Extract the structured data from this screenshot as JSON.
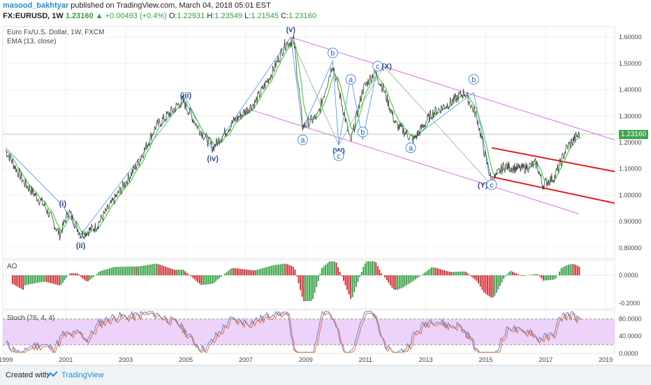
{
  "header": {
    "author": "masood_bakhtyar",
    "published_text": "published on TradingView.com, March 04, 2018 05:01 EST",
    "symbol": "FX:EURUSD, 1W",
    "last": "1.23160",
    "change": "▲ +0.00493 (+0.4%)",
    "o_label": "O:",
    "o": "1.22931",
    "h_label": "H:",
    "h": "1.23549",
    "l_label": "L:",
    "l": "1.21545",
    "c_label": "C:",
    "c": "1.23160"
  },
  "legend": {
    "instrument": "Euro Fx/U.S. Dollar, 1W, FXCM",
    "ema": "EMA (13, close)",
    "ao": "AO",
    "stoch": "Stoch (76, 4, 4)"
  },
  "footer": {
    "created_with": "Created with",
    "brand": "TradingView"
  },
  "colors": {
    "price": "#3e3e3e",
    "ema": "#4ccd4c",
    "wave": "#4a90e2",
    "wave2": "#8cb08c",
    "channel_pink": "#e070e0",
    "channel_red": "#e02020",
    "last_price": "#3fa34d",
    "ao_up": "#2e9e3e",
    "ao_down": "#c8282d",
    "stoch_fill": "#e8c8f8"
  },
  "chart_data": [
    {
      "type": "line",
      "title": "Euro Fx/U.S. Dollar, 1W, FXCM",
      "x": [
        1999.0,
        1999.6,
        2000.3,
        2000.8,
        2001.1,
        2001.5,
        2002.0,
        2002.6,
        2003.4,
        2004.0,
        2004.9,
        2005.4,
        2005.9,
        2006.6,
        2007.3,
        2007.9,
        2008.3,
        2008.6,
        2008.9,
        2009.4,
        2009.9,
        2010.5,
        2010.9,
        2011.3,
        2011.6,
        2012.0,
        2012.6,
        2013.2,
        2013.8,
        2014.3,
        2014.7,
        2015.0,
        2015.2,
        2015.6,
        2016.2,
        2016.7,
        2016.9,
        2017.3,
        2017.7,
        2018.0,
        2018.15
      ],
      "y": [
        1.17,
        1.05,
        0.96,
        0.85,
        0.94,
        0.85,
        0.88,
        0.98,
        1.12,
        1.26,
        1.36,
        1.26,
        1.18,
        1.28,
        1.35,
        1.47,
        1.57,
        1.59,
        1.26,
        1.3,
        1.5,
        1.2,
        1.4,
        1.47,
        1.4,
        1.27,
        1.21,
        1.31,
        1.35,
        1.39,
        1.3,
        1.14,
        1.05,
        1.11,
        1.1,
        1.12,
        1.04,
        1.07,
        1.18,
        1.22,
        1.2316
      ],
      "ylim": [
        0.76,
        1.64
      ],
      "xlim": [
        1998.9,
        2019.3
      ],
      "last_value": "1.23160",
      "y_ticks": [
        "1.60000",
        "1.50000",
        "1.40000",
        "1.30000",
        "1.20000",
        "1.10000",
        "1.00000",
        "0.90000",
        "0.80000"
      ],
      "x_ticks": [
        "1999",
        "2001",
        "2003",
        "2005",
        "2007",
        "2009",
        "2011",
        "2013",
        "2015",
        "2017",
        "2019"
      ],
      "wave_labels": [
        {
          "text": "(i)",
          "x": 2000.9,
          "y": 0.97
        },
        {
          "text": "(ii)",
          "x": 2001.5,
          "y": 0.81
        },
        {
          "text": "(iii)",
          "x": 2005.0,
          "y": 1.38
        },
        {
          "text": "(iv)",
          "x": 2005.9,
          "y": 1.14
        },
        {
          "text": "(v)",
          "x": 2008.5,
          "y": 1.63
        },
        {
          "text": "a",
          "x": 2008.9,
          "y": 1.21
        },
        {
          "text": "b",
          "x": 2009.9,
          "y": 1.54
        },
        {
          "text": "(W)",
          "x": 2010.1,
          "y": 1.17
        },
        {
          "text": "c",
          "x": 2010.1,
          "y": 1.15
        },
        {
          "text": "a",
          "x": 2010.5,
          "y": 1.44
        },
        {
          "text": "b",
          "x": 2010.9,
          "y": 1.24
        },
        {
          "text": "c",
          "x": 2011.4,
          "y": 1.49
        },
        {
          "text": "(X)",
          "x": 2011.7,
          "y": 1.49
        },
        {
          "text": "a",
          "x": 2012.5,
          "y": 1.18
        },
        {
          "text": "b",
          "x": 2014.6,
          "y": 1.44
        },
        {
          "text": "(Y)",
          "x": 2014.9,
          "y": 1.04
        },
        {
          "text": "c",
          "x": 2015.2,
          "y": 1.04
        }
      ]
    },
    {
      "type": "bar",
      "title": "AO",
      "y_ticks": [
        "0.0000",
        "-0.2000"
      ],
      "ylim": [
        -0.24,
        0.11
      ]
    },
    {
      "type": "line",
      "title": "Stoch (76, 4, 4)",
      "y_ticks": [
        "80.0000",
        "40.0000",
        "0.0000"
      ],
      "ylim": [
        0,
        100
      ],
      "bands": [
        20,
        80
      ]
    }
  ]
}
